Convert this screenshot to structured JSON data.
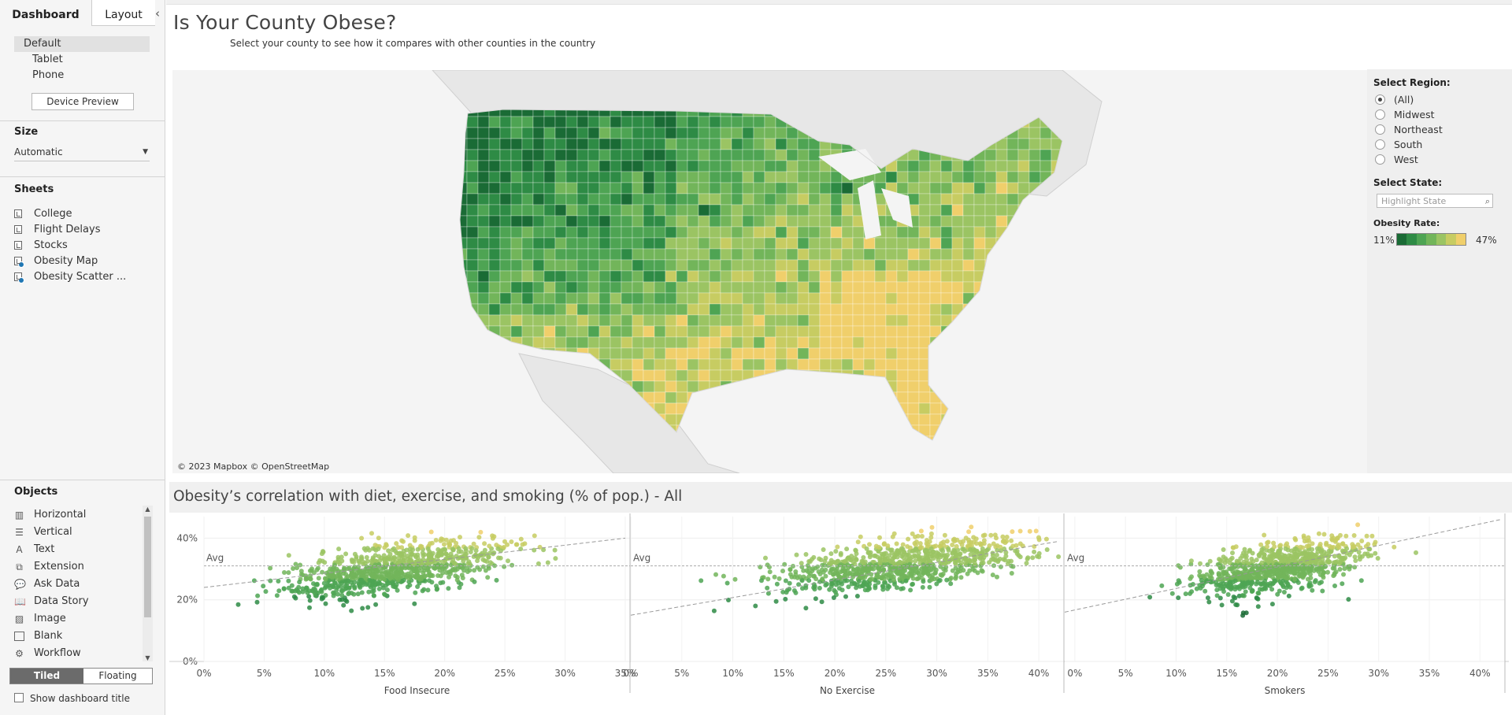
{
  "left_pane": {
    "tabs": {
      "dashboard": "Dashboard",
      "layout": "Layout"
    },
    "devices": [
      "Default",
      "Tablet",
      "Phone"
    ],
    "device_preview_label": "Device Preview",
    "size": {
      "title": "Size",
      "value": "Automatic"
    },
    "sheets": {
      "title": "Sheets",
      "items": [
        {
          "label": "College",
          "in_use": false
        },
        {
          "label": "Flight Delays",
          "in_use": false
        },
        {
          "label": "Stocks",
          "in_use": false
        },
        {
          "label": "Obesity Map",
          "in_use": true
        },
        {
          "label": "Obesity Scatter ...",
          "in_use": true
        }
      ]
    },
    "objects": {
      "title": "Objects",
      "items": [
        {
          "label": "Horizontal",
          "icon": "horizontal-container-icon"
        },
        {
          "label": "Vertical",
          "icon": "vertical-container-icon"
        },
        {
          "label": "Text",
          "icon": "text-icon"
        },
        {
          "label": "Extension",
          "icon": "extension-icon"
        },
        {
          "label": "Ask Data",
          "icon": "ask-data-icon"
        },
        {
          "label": "Data Story",
          "icon": "data-story-icon"
        },
        {
          "label": "Image",
          "icon": "image-icon"
        },
        {
          "label": "Blank",
          "icon": "blank-icon"
        },
        {
          "label": "Workflow",
          "icon": "workflow-icon"
        }
      ]
    },
    "layout_mode": {
      "tiled": "Tiled",
      "floating": "Floating",
      "selected": "Tiled"
    },
    "show_dashboard_title": "Show dashboard title"
  },
  "dashboard": {
    "title": "Is Your County Obese?",
    "subtitle": "Select your county to see how it compares with other counties in the country",
    "map_attribution": "© 2023 Mapbox © OpenStreetMap",
    "filters": {
      "region_label": "Select Region:",
      "regions": [
        "(All)",
        "Midwest",
        "Northeast",
        "South",
        "West"
      ],
      "selected_region": "(All)",
      "state_label": "Select State:",
      "state_placeholder": "Highlight State",
      "legend_label": "Obesity Rate:",
      "legend_min": "11%",
      "legend_max": "47%",
      "legend_colors": [
        "#1a6b35",
        "#2e8b45",
        "#4ea453",
        "#72b55a",
        "#9bc463",
        "#c7cc62",
        "#f0cf6b"
      ]
    },
    "scatter_title": "Obesity’s correlation with diet, exercise, and smoking (% of pop.) - All"
  },
  "chart_data": {
    "type": "scatter",
    "y_label": "",
    "y_ticks": [
      "0%",
      "20%",
      "40%"
    ],
    "ylim": [
      0,
      47
    ],
    "avg_label": "Avg",
    "avg_value": 31,
    "panels": [
      {
        "xlabel": "Food Insecure",
        "xlim": [
          0,
          35
        ],
        "x_ticks": [
          "0%",
          "5%",
          "10%",
          "15%",
          "20%",
          "25%",
          "30%",
          "35%"
        ],
        "center": [
          16,
          30
        ],
        "spread": [
          4.5,
          4.5
        ],
        "trend": [
          [
            0,
            24
          ],
          [
            35,
            40
          ]
        ]
      },
      {
        "xlabel": "No Exercise",
        "xlim": [
          0,
          42
        ],
        "x_ticks": [
          "0%",
          "5%",
          "10%",
          "15%",
          "20%",
          "25%",
          "30%",
          "35%",
          "40%"
        ],
        "center": [
          26,
          31
        ],
        "spread": [
          6,
          4.5
        ],
        "trend": [
          [
            0,
            15
          ],
          [
            42,
            39
          ]
        ]
      },
      {
        "xlabel": "Smokers",
        "xlim": [
          -1,
          42
        ],
        "x_ticks": [
          "0%",
          "5%",
          "10%",
          "15%",
          "20%",
          "25%",
          "30%",
          "35%",
          "40%"
        ],
        "center": [
          20,
          30.5
        ],
        "spread": [
          4,
          4.5
        ],
        "trend": [
          [
            -1,
            16
          ],
          [
            42,
            46
          ]
        ]
      }
    ]
  }
}
